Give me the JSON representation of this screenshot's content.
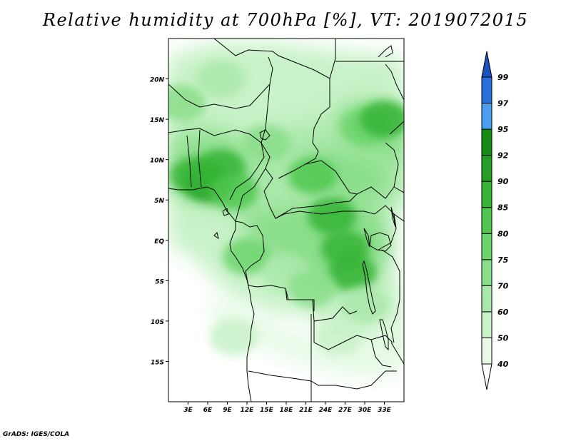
{
  "title": "Relative humidity at 700hPa [%], VT: 2019072015",
  "credit": "GrADS: IGES/COLA",
  "map": {
    "lon_range": [
      0,
      36
    ],
    "lat_range": [
      -20,
      25
    ],
    "lat_ticks": [
      {
        "value": 20,
        "label": "20N"
      },
      {
        "value": 15,
        "label": "15N"
      },
      {
        "value": 10,
        "label": "10N"
      },
      {
        "value": 5,
        "label": "5N"
      },
      {
        "value": 0,
        "label": "EQ"
      },
      {
        "value": -5,
        "label": "5S"
      },
      {
        "value": -10,
        "label": "10S"
      },
      {
        "value": -15,
        "label": "15S"
      }
    ],
    "lon_ticks": [
      {
        "value": 3,
        "label": "3E"
      },
      {
        "value": 6,
        "label": "6E"
      },
      {
        "value": 9,
        "label": "9E"
      },
      {
        "value": 12,
        "label": "12E"
      },
      {
        "value": 15,
        "label": "15E"
      },
      {
        "value": 18,
        "label": "18E"
      },
      {
        "value": 21,
        "label": "21E"
      },
      {
        "value": 24,
        "label": "24E"
      },
      {
        "value": 27,
        "label": "27E"
      },
      {
        "value": 30,
        "label": "30E"
      },
      {
        "value": 33,
        "label": "33E"
      }
    ]
  },
  "colorbar": {
    "levels": [
      "40",
      "50",
      "60",
      "70",
      "75",
      "80",
      "85",
      "90",
      "92",
      "95",
      "97",
      "99"
    ],
    "colors": [
      "#ffffff",
      "#e6fae6",
      "#c8f2c8",
      "#aae8aa",
      "#8ade8a",
      "#6cd46c",
      "#50c850",
      "#36b436",
      "#249e24",
      "#148c14",
      "#4a9ef0",
      "#2a70dc",
      "#1a52c0"
    ]
  },
  "humidity_field": [
    {
      "lon": 6,
      "lat": 7,
      "level": "90"
    },
    {
      "lon": 4,
      "lat": 8,
      "level": "85"
    },
    {
      "lon": 8,
      "lat": 9,
      "level": "85"
    },
    {
      "lon": 10,
      "lat": 6,
      "level": "80"
    },
    {
      "lon": 25,
      "lat": 3,
      "level": "85"
    },
    {
      "lon": 27,
      "lat": -1,
      "level": "85"
    },
    {
      "lon": 28,
      "lat": -4,
      "level": "85"
    },
    {
      "lon": 22,
      "lat": 8,
      "level": "80"
    },
    {
      "lon": 30,
      "lat": 14,
      "level": "75"
    },
    {
      "lon": 33,
      "lat": 15,
      "level": "85"
    },
    {
      "lon": 15,
      "lat": 12,
      "level": "70"
    },
    {
      "lon": 2,
      "lat": 17,
      "level": "70"
    },
    {
      "lon": 8,
      "lat": 20,
      "level": "60"
    },
    {
      "lon": 12,
      "lat": -2,
      "level": "75"
    },
    {
      "lon": 18,
      "lat": -4,
      "level": "60"
    },
    {
      "lon": 22,
      "lat": -6,
      "level": "70"
    },
    {
      "lon": 30,
      "lat": -8,
      "level": "60"
    },
    {
      "lon": 10,
      "lat": -12,
      "level": "50"
    },
    {
      "lon": 26,
      "lat": -12,
      "level": "50"
    }
  ]
}
